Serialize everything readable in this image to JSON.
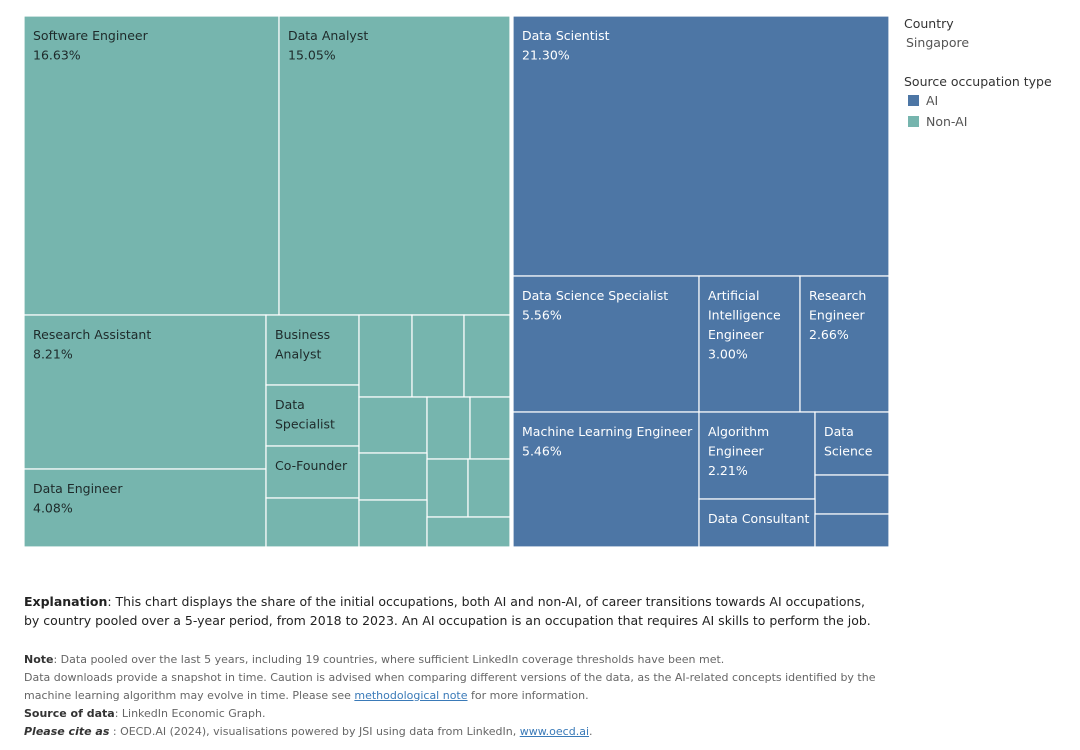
{
  "chart_data": {
    "type": "treemap",
    "title": "",
    "categories_note": "Source occupation type",
    "colors": {
      "AI": "#4d76a5",
      "Non-AI": "#76b5ae"
    },
    "items": [
      {
        "name": "Software Engineer",
        "value": 16.63,
        "value_label": "16.63%",
        "type": "Non-AI"
      },
      {
        "name": "Data Analyst",
        "value": 15.05,
        "value_label": "15.05%",
        "type": "Non-AI"
      },
      {
        "name": "Research Assistant",
        "value": 8.21,
        "value_label": "8.21%",
        "type": "Non-AI"
      },
      {
        "name": "Data Engineer",
        "value": 4.08,
        "value_label": "4.08%",
        "type": "Non-AI"
      },
      {
        "name": "Business Analyst",
        "value": null,
        "value_label": "",
        "type": "Non-AI"
      },
      {
        "name": "Data Specialist",
        "value": null,
        "value_label": "",
        "type": "Non-AI"
      },
      {
        "name": "Co-Founder",
        "value": null,
        "value_label": "",
        "type": "Non-AI"
      },
      {
        "name": "Data Scientist",
        "value": 21.3,
        "value_label": "21.30%",
        "type": "AI"
      },
      {
        "name": "Data Science Specialist",
        "value": 5.56,
        "value_label": "5.56%",
        "type": "AI"
      },
      {
        "name": "Artificial Intelligence Engineer",
        "value": 3.0,
        "value_label": "3.00%",
        "type": "AI"
      },
      {
        "name": "Research Engineer",
        "value": 2.66,
        "value_label": "2.66%",
        "type": "AI"
      },
      {
        "name": "Machine Learning Engineer",
        "value": 5.46,
        "value_label": "5.46%",
        "type": "AI"
      },
      {
        "name": "Algorithm Engineer",
        "value": 2.21,
        "value_label": "2.21%",
        "type": "AI"
      },
      {
        "name": "Data Science",
        "value": null,
        "value_label": "",
        "type": "AI"
      },
      {
        "name": "Data Consultant",
        "value": null,
        "value_label": "",
        "type": "AI"
      }
    ]
  },
  "legend": {
    "country_label": "Country",
    "country_value": "Singapore",
    "type_label": "Source occupation type",
    "items": [
      {
        "label": "AI",
        "color": "#4d76a5"
      },
      {
        "label": "Non-AI",
        "color": "#76b5ae"
      }
    ]
  },
  "explanation": {
    "label": "Explanation",
    "text": ": This chart displays the share of the initial occupations, both AI and non-AI, of career transitions towards AI occupations, by country pooled over a 5-year period, from 2018 to 2023. An AI occupation is an occupation that requires AI skills to perform the job."
  },
  "notes": {
    "note_label": "Note",
    "note_text": ": Data pooled over the last 5 years, including 19 countries, where sufficient LinkedIn coverage thresholds have been met.",
    "downloads_line1": "Data downloads provide a snapshot in time. Caution is advised when comparing different versions of the data, as the AI-related concepts identified by the",
    "downloads_line2_pre": "machine learning algorithm may evolve in time. Please see ",
    "methodological_link": "methodological note",
    "downloads_line2_post": " for more information.",
    "source_label": "Source of data",
    "source_text": ": LinkedIn Economic Graph.",
    "cite_label": "Please cite as",
    "cite_text": " : OECD.AI (2024), visualisations powered by JSI using data from LinkedIn, ",
    "cite_link": "www.oecd.ai",
    "cite_end": "."
  }
}
